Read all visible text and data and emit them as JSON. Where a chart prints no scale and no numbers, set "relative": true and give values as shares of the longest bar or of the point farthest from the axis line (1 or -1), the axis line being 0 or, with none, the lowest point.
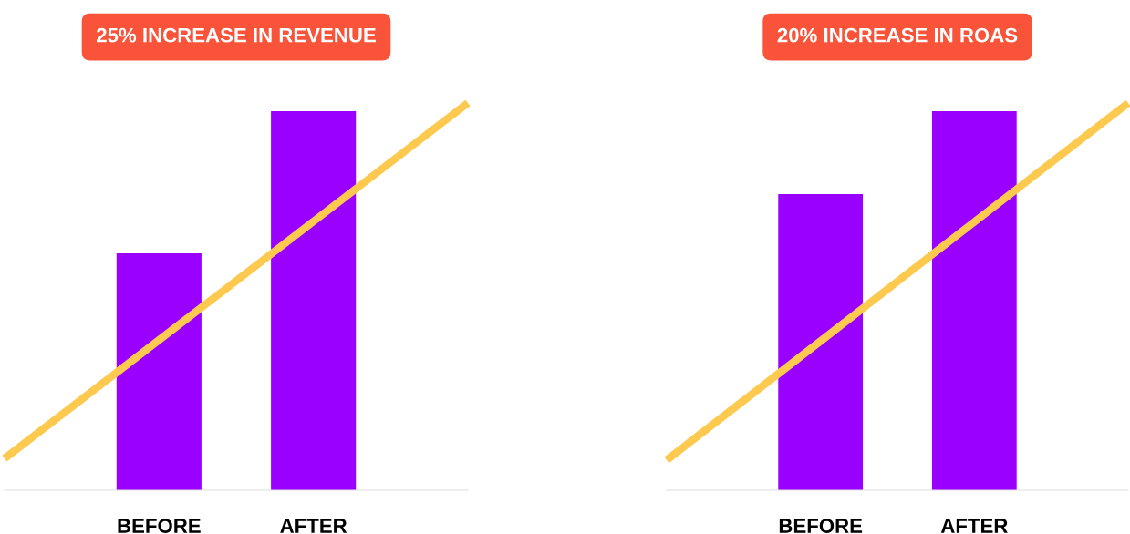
{
  "chart_data": [
    {
      "type": "bar",
      "title": "25% INCREASE IN REVENUE",
      "relative": true,
      "categories": [
        null,
        "BEFORE",
        "AFTER",
        null
      ],
      "series": [
        {
          "color": "#9900ff",
          "values": [
            null,
            0.612,
            0.979,
            null
          ]
        },
        {
          "type": "line",
          "color": "#fdc94f",
          "values": [
            0.082,
            0.388,
            0.694,
            1.0
          ]
        }
      ]
    },
    {
      "type": "bar",
      "title": "20% INCREASE IN ROAS",
      "relative": true,
      "categories": [
        null,
        "BEFORE",
        "AFTER",
        null
      ],
      "series": [
        {
          "color": "#9900ff",
          "values": [
            null,
            0.765,
            0.979,
            null
          ]
        },
        {
          "type": "line",
          "color": "#fdc94f",
          "values": [
            0.078,
            0.385,
            0.693,
            1.0
          ]
        }
      ]
    }
  ]
}
